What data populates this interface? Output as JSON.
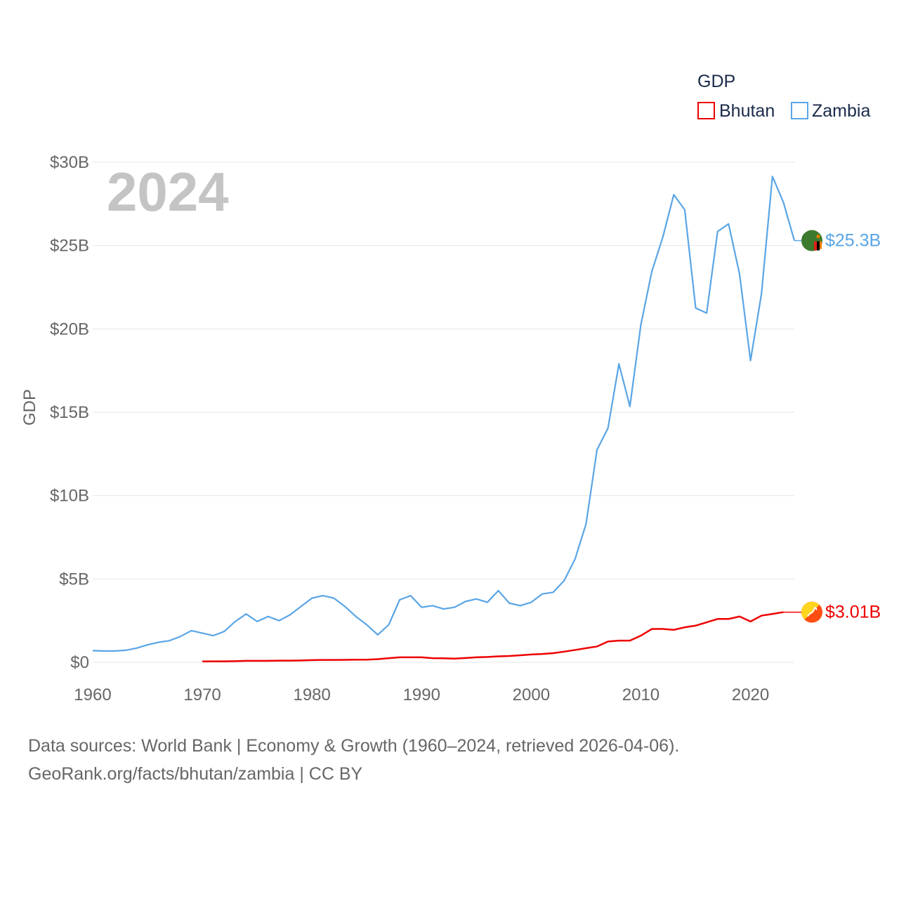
{
  "chart_data": {
    "type": "line",
    "title": "",
    "legend_title": "GDP",
    "legend_position": "top-right",
    "big_year": "2024",
    "xlabel": "",
    "ylabel": "GDP",
    "xlim": [
      1960,
      2024
    ],
    "ylim": [
      0,
      30000000000
    ],
    "x_ticks": [
      1960,
      1970,
      1980,
      1990,
      2000,
      2010,
      2020
    ],
    "x_tick_labels": [
      "1960",
      "1970",
      "1980",
      "1990",
      "2000",
      "2010",
      "2020"
    ],
    "y_ticks": [
      0,
      5000000000,
      10000000000,
      15000000000,
      20000000000,
      25000000000,
      30000000000
    ],
    "y_tick_labels": [
      "$0",
      "$5B",
      "$10B",
      "$15B",
      "$20B",
      "$25B",
      "$30B"
    ],
    "grid": true,
    "series": [
      {
        "name": "Bhutan",
        "color": "#ee0000",
        "end_label": "$3.01B",
        "flag_icon": "bhutan-flag-icon",
        "x": [
          1970,
          1971,
          1972,
          1973,
          1974,
          1975,
          1976,
          1977,
          1978,
          1979,
          1980,
          1981,
          1982,
          1983,
          1984,
          1985,
          1986,
          1987,
          1988,
          1989,
          1990,
          1991,
          1992,
          1993,
          1994,
          1995,
          1996,
          1997,
          1998,
          1999,
          2000,
          2001,
          2002,
          2003,
          2004,
          2005,
          2006,
          2007,
          2008,
          2009,
          2010,
          2011,
          2012,
          2013,
          2014,
          2015,
          2016,
          2017,
          2018,
          2019,
          2020,
          2021,
          2022,
          2023
        ],
        "values": [
          0.05,
          0.06,
          0.06,
          0.07,
          0.09,
          0.09,
          0.09,
          0.1,
          0.1,
          0.11,
          0.13,
          0.14,
          0.14,
          0.15,
          0.16,
          0.16,
          0.19,
          0.25,
          0.3,
          0.3,
          0.3,
          0.25,
          0.24,
          0.22,
          0.26,
          0.3,
          0.32,
          0.36,
          0.38,
          0.42,
          0.47,
          0.5,
          0.55,
          0.64,
          0.74,
          0.85,
          0.95,
          1.25,
          1.3,
          1.3,
          1.6,
          2.0,
          2.0,
          1.95,
          2.1,
          2.2,
          2.4,
          2.6,
          2.6,
          2.75,
          2.45,
          2.8,
          2.9,
          3.01
        ]
      },
      {
        "name": "Zambia",
        "color": "#5aa5e6",
        "end_label": "$25.3B",
        "flag_icon": "zambia-flag-icon",
        "x": [
          1960,
          1961,
          1962,
          1963,
          1964,
          1965,
          1966,
          1967,
          1968,
          1969,
          1970,
          1971,
          1972,
          1973,
          1974,
          1975,
          1976,
          1977,
          1978,
          1979,
          1980,
          1981,
          1982,
          1983,
          1984,
          1985,
          1986,
          1987,
          1988,
          1989,
          1990,
          1991,
          1992,
          1993,
          1994,
          1995,
          1996,
          1997,
          1998,
          1999,
          2000,
          2001,
          2002,
          2003,
          2004,
          2005,
          2006,
          2007,
          2008,
          2009,
          2010,
          2011,
          2012,
          2013,
          2014,
          2015,
          2016,
          2017,
          2018,
          2019,
          2020,
          2021,
          2022,
          2023,
          2024
        ],
        "values": [
          0.7,
          0.68,
          0.68,
          0.72,
          0.85,
          1.05,
          1.2,
          1.3,
          1.55,
          1.9,
          1.75,
          1.6,
          1.85,
          2.45,
          2.9,
          2.45,
          2.75,
          2.5,
          2.85,
          3.35,
          3.85,
          4.0,
          3.85,
          3.35,
          2.75,
          2.25,
          1.65,
          2.25,
          3.75,
          4.0,
          3.3,
          3.4,
          3.2,
          3.3,
          3.65,
          3.8,
          3.6,
          4.3,
          3.55,
          3.4,
          3.6,
          4.1,
          4.2,
          4.9,
          6.2,
          8.3,
          12.75,
          14.05,
          17.9,
          15.35,
          20.25,
          23.45,
          25.5,
          28.05,
          27.15,
          21.25,
          20.95,
          25.85,
          26.3,
          23.3,
          18.1,
          22.1,
          29.15,
          27.6,
          25.3
        ]
      }
    ],
    "values_unit": "billion USD"
  },
  "source": {
    "line1": "Data sources: World Bank | Economy & Growth (1960–2024, retrieved 2026-04-06).",
    "line2": "GeoRank.org/facts/bhutan/zambia | CC BY"
  }
}
